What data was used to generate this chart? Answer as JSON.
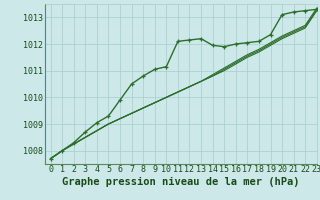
{
  "background_color": "#cce8e8",
  "grid_color": "#a8cccc",
  "line_color": "#2d6e2d",
  "title": "Graphe pression niveau de la mer (hPa)",
  "xlim": [
    -0.5,
    23
  ],
  "ylim": [
    1007.5,
    1013.5
  ],
  "yticks": [
    1008,
    1009,
    1010,
    1011,
    1012,
    1013
  ],
  "xticks": [
    0,
    1,
    2,
    3,
    4,
    5,
    6,
    7,
    8,
    9,
    10,
    11,
    12,
    13,
    14,
    15,
    16,
    17,
    18,
    19,
    20,
    21,
    22,
    23
  ],
  "series_main": [
    1007.7,
    1008.0,
    1008.3,
    1008.7,
    1009.05,
    1009.3,
    1009.9,
    1010.5,
    1010.8,
    1011.05,
    1011.15,
    1012.1,
    1012.15,
    1012.2,
    1011.95,
    1011.9,
    1012.0,
    1012.05,
    1012.1,
    1012.35,
    1013.1,
    1013.2,
    1013.25,
    1013.3
  ],
  "series_linear": [
    [
      1007.7,
      1008.0,
      1008.25,
      1008.5,
      1008.75,
      1009.0,
      1009.2,
      1009.4,
      1009.6,
      1009.8,
      1010.0,
      1010.2,
      1010.4,
      1010.6,
      1010.8,
      1011.0,
      1011.25,
      1011.5,
      1011.7,
      1011.95,
      1012.2,
      1012.4,
      1012.6,
      1013.25
    ],
    [
      1007.7,
      1008.0,
      1008.25,
      1008.5,
      1008.75,
      1009.0,
      1009.2,
      1009.4,
      1009.6,
      1009.8,
      1010.0,
      1010.2,
      1010.4,
      1010.6,
      1010.8,
      1011.05,
      1011.3,
      1011.55,
      1011.75,
      1012.0,
      1012.25,
      1012.45,
      1012.65,
      1013.3
    ],
    [
      1007.7,
      1008.0,
      1008.25,
      1008.5,
      1008.75,
      1009.0,
      1009.2,
      1009.4,
      1009.6,
      1009.8,
      1010.0,
      1010.2,
      1010.4,
      1010.6,
      1010.85,
      1011.1,
      1011.35,
      1011.6,
      1011.8,
      1012.05,
      1012.3,
      1012.5,
      1012.7,
      1013.35
    ]
  ],
  "title_fontsize": 7.5,
  "tick_fontsize": 6.0,
  "title_color": "#1a4a1a",
  "tick_color": "#1a4a1a"
}
